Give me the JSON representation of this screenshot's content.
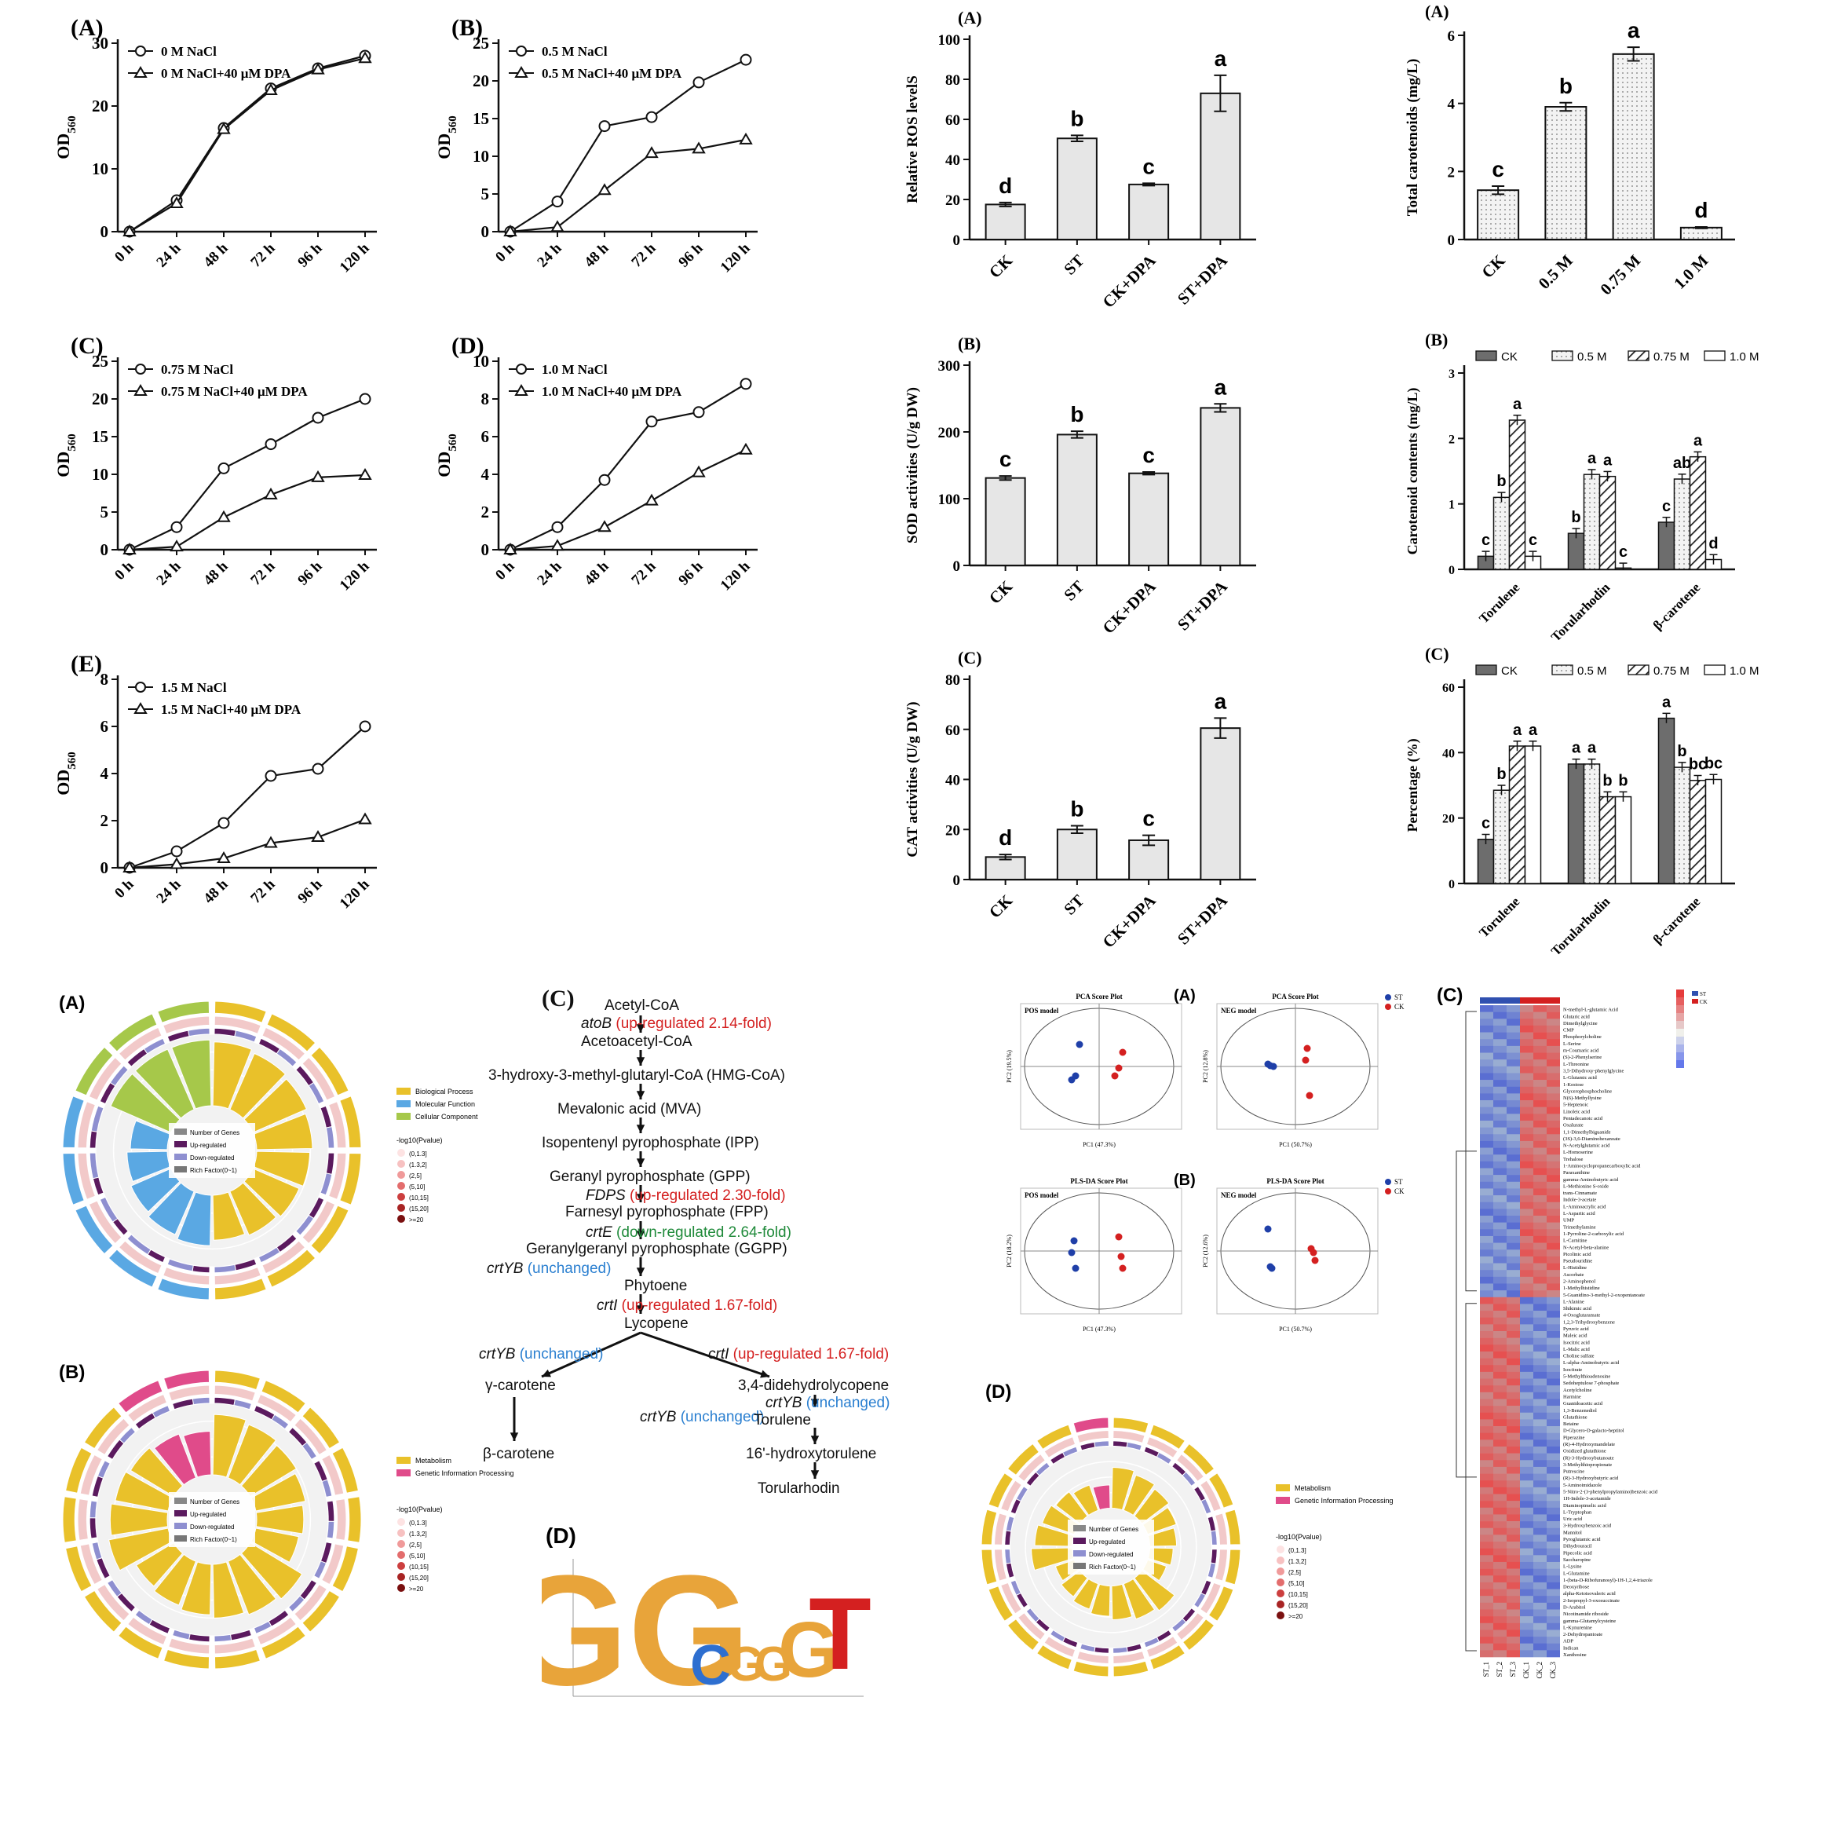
{
  "growth_panels": [
    {
      "label": "(A)",
      "series": [
        "0 M NaCl",
        "0 M NaCl+40 μM DPA"
      ]
    },
    {
      "label": "(B)",
      "series": [
        "0.5 M NaCl",
        "0.5 M NaCl+40 μM DPA"
      ]
    },
    {
      "label": "(C)",
      "series": [
        "0.75 M NaCl",
        "0.75 M NaCl+40 μM DPA"
      ]
    },
    {
      "label": "(D)",
      "series": [
        "1.0 M NaCl",
        "1.0 M NaCl+40 μM DPA"
      ]
    },
    {
      "label": "(E)",
      "series": [
        "1.5 M NaCl",
        "1.5 M NaCl+40 μM DPA"
      ]
    }
  ],
  "bar_panels": [
    {
      "label": "(A)",
      "ylabel": "Relative ROS levelS"
    },
    {
      "label": "(B)",
      "ylabel": "SOD activities (U/g DW)"
    },
    {
      "label": "(C)",
      "ylabel": "CAT activities (U/g DW)"
    }
  ],
  "carotenoid_panels": [
    {
      "label": "(A)",
      "ylabel": "Total carotenoids (mg/L)"
    },
    {
      "label": "(B)",
      "ylabel": "Carotenoid contents (mg/L)",
      "legend": [
        "CK",
        "0.5 M",
        "0.75 M",
        "1.0 M"
      ]
    },
    {
      "label": "(C)",
      "ylabel": "Percentage (%)",
      "legend": [
        "CK",
        "0.5 M",
        "0.75 M",
        "1.0 M"
      ]
    }
  ],
  "chart_data": [
    {
      "type": "line",
      "panel": "growth-A",
      "x": [
        "0 h",
        "24 h",
        "48 h",
        "72 h",
        "96 h",
        "120 h"
      ],
      "ylabel": "OD560",
      "ylim": [
        0,
        30
      ],
      "series": [
        {
          "name": "0 M NaCl",
          "values": [
            0,
            5,
            16.5,
            22.8,
            26,
            28
          ]
        },
        {
          "name": "0 M NaCl+40 μM DPA",
          "values": [
            0,
            4.5,
            16.3,
            22.5,
            25.8,
            27.6
          ]
        }
      ]
    },
    {
      "type": "line",
      "panel": "growth-B",
      "x": [
        "0 h",
        "24 h",
        "48 h",
        "72 h",
        "96 h",
        "120 h"
      ],
      "ylabel": "OD560",
      "ylim": [
        0,
        25
      ],
      "series": [
        {
          "name": "0.5 M NaCl",
          "values": [
            0,
            4,
            14,
            15.2,
            19.8,
            22.8
          ]
        },
        {
          "name": "0.5 M NaCl+40 μM DPA",
          "values": [
            0,
            0.6,
            5.5,
            10.4,
            11,
            12.2
          ]
        }
      ]
    },
    {
      "type": "line",
      "panel": "growth-C",
      "x": [
        "0 h",
        "24 h",
        "48 h",
        "72 h",
        "96 h",
        "120 h"
      ],
      "ylabel": "OD560",
      "ylim": [
        0,
        25
      ],
      "series": [
        {
          "name": "0.75 M NaCl",
          "values": [
            0,
            3,
            10.8,
            14,
            17.5,
            20
          ]
        },
        {
          "name": "0.75 M NaCl+40 μM DPA",
          "values": [
            0,
            0.4,
            4.3,
            7.3,
            9.6,
            9.9
          ]
        }
      ]
    },
    {
      "type": "line",
      "panel": "growth-D",
      "x": [
        "0 h",
        "24 h",
        "48 h",
        "72 h",
        "96 h",
        "120 h"
      ],
      "ylabel": "OD560",
      "ylim": [
        0,
        10
      ],
      "series": [
        {
          "name": "1.0 M NaCl",
          "values": [
            0,
            1.2,
            3.7,
            6.8,
            7.3,
            8.8
          ]
        },
        {
          "name": "1.0 M NaCl+40 μM DPA",
          "values": [
            0,
            0.2,
            1.2,
            2.6,
            4.1,
            5.3
          ]
        }
      ]
    },
    {
      "type": "line",
      "panel": "growth-E",
      "x": [
        "0 h",
        "24 h",
        "48 h",
        "72 h",
        "96 h",
        "120 h"
      ],
      "ylabel": "OD560",
      "ylim": [
        0,
        8
      ],
      "series": [
        {
          "name": "1.5 M NaCl",
          "values": [
            0,
            0.7,
            1.9,
            3.9,
            4.2,
            6
          ]
        },
        {
          "name": "1.5 M NaCl+40 μM DPA",
          "values": [
            0,
            0.15,
            0.4,
            1.05,
            1.3,
            2.05
          ]
        }
      ]
    },
    {
      "type": "bar",
      "panel": "ros",
      "categories": [
        "CK",
        "ST",
        "CK+DPA",
        "ST+DPA"
      ],
      "values": [
        17.5,
        50.5,
        27.5,
        73
      ],
      "errors": [
        1,
        1.5,
        0.6,
        9
      ],
      "letters": [
        "d",
        "b",
        "c",
        "a"
      ],
      "ylabel": "Relative ROS levelS",
      "ylim": [
        0,
        100
      ]
    },
    {
      "type": "bar",
      "panel": "sod",
      "categories": [
        "CK",
        "ST",
        "CK+DPA",
        "ST+DPA"
      ],
      "values": [
        131,
        196,
        138,
        236
      ],
      "errors": [
        3,
        5,
        2,
        6
      ],
      "letters": [
        "c",
        "b",
        "c",
        "a"
      ],
      "ylabel": "SOD activities (U/g DW)",
      "ylim": [
        0,
        300
      ]
    },
    {
      "type": "bar",
      "panel": "cat",
      "categories": [
        "CK",
        "ST",
        "CK+DPA",
        "ST+DPA"
      ],
      "values": [
        9,
        20,
        15.7,
        60.5
      ],
      "errors": [
        1,
        1.5,
        2,
        4
      ],
      "letters": [
        "d",
        "b",
        "c",
        "a"
      ],
      "ylabel": "CAT activities (U/g DW)",
      "ylim": [
        0,
        80
      ]
    },
    {
      "type": "bar",
      "panel": "total-carotenoids",
      "categories": [
        "CK",
        "0.5 M",
        "0.75 M",
        "1.0 M"
      ],
      "values": [
        1.45,
        3.9,
        5.45,
        0.35
      ],
      "errors": [
        0.12,
        0.12,
        0.2,
        0.02
      ],
      "letters": [
        "c",
        "b",
        "a",
        "d"
      ],
      "ylabel": "Total carotenoids (mg/L)",
      "ylim": [
        0,
        6
      ]
    },
    {
      "type": "bar",
      "panel": "carotenoid-contents",
      "categories": [
        "Torulene",
        "Torularhodin",
        "β-carotene"
      ],
      "ylabel": "Carotenoid contents (mg/L)",
      "ylim": [
        0,
        3
      ],
      "series": [
        {
          "name": "CK",
          "values": [
            0.2,
            0.55,
            0.72
          ],
          "letters": [
            "c",
            "b",
            "c"
          ]
        },
        {
          "name": "0.5 M",
          "values": [
            1.1,
            1.45,
            1.38
          ],
          "letters": [
            "b",
            "a",
            "ab"
          ]
        },
        {
          "name": "0.75 M",
          "values": [
            2.28,
            1.42,
            1.72
          ],
          "letters": [
            "a",
            "a",
            "a"
          ]
        },
        {
          "name": "1.0 M",
          "values": [
            0.2,
            0.02,
            0.15
          ],
          "letters": [
            "c",
            "c",
            "d"
          ]
        }
      ]
    },
    {
      "type": "bar",
      "panel": "percentage",
      "categories": [
        "Torulene",
        "Torularhodin",
        "β-carotene"
      ],
      "ylabel": "Percentage (%)",
      "ylim": [
        0,
        60
      ],
      "series": [
        {
          "name": "CK",
          "values": [
            13.5,
            36.5,
            50.5
          ],
          "letters": [
            "c",
            "a",
            "a"
          ]
        },
        {
          "name": "0.5 M",
          "values": [
            28.5,
            36.5,
            35.5
          ],
          "letters": [
            "b",
            "a",
            "b"
          ]
        },
        {
          "name": "0.75 M",
          "values": [
            42,
            26.5,
            31.5
          ],
          "letters": [
            "a",
            "b",
            "bc"
          ]
        },
        {
          "name": "1.0 M",
          "values": [
            42,
            26.5,
            31.8
          ],
          "letters": [
            "a",
            "b",
            "bc"
          ]
        }
      ]
    }
  ],
  "omics": {
    "go_label": "(A)",
    "kegg_label": "(B)",
    "pathway_label": "(C)",
    "motif_label": "(D)",
    "go_legend": [
      "Biological Process",
      "Molecular Function",
      "Cellular Component"
    ],
    "kegg_legend": [
      "Metabolism",
      "Genetic Information Processing"
    ],
    "inner_legend": [
      "Number of Genes",
      "Up-regulated",
      "Down-regulated",
      "Rich Factor(0~1)"
    ],
    "pvalue_title": "-log10(Pvalue)",
    "pvalue_bins": [
      "(0,1.3]",
      "(1.3,2]",
      "(2,5]",
      "(5,10]",
      "(10,15]",
      "(15,20]",
      ">=20"
    ],
    "motif_letters": [
      "GG",
      "C",
      "G",
      "G",
      "G",
      "T"
    ],
    "pathway": [
      {
        "name": "Acetyl-CoA"
      },
      {
        "gene": "atoB",
        "note": "(up-regulated  2.14-fold)",
        "kind": "up"
      },
      {
        "name": "Acetoacetyl-CoA"
      },
      {
        "name": "3-hydroxy-3-methyl-glutaryl-CoA (HMG-CoA)"
      },
      {
        "name": "Mevalonic acid (MVA)"
      },
      {
        "name": "Isopentenyl pyrophosphate (IPP)"
      },
      {
        "name": "Geranyl pyrophosphate (GPP)"
      },
      {
        "gene": "FDPS",
        "note": "(up-regulated  2.30-fold)",
        "kind": "up"
      },
      {
        "name": "Farnesyl pyrophosphate (FPP)"
      },
      {
        "gene": "crtE",
        "note": "(down-regulated  2.64-fold)",
        "kind": "down"
      },
      {
        "name": "Geranylgeranyl pyrophosphate (GGPP)"
      },
      {
        "gene": "crtYB",
        "note": "(unchanged)",
        "kind": "unch"
      },
      {
        "name": "Phytoene"
      },
      {
        "gene": "crtI",
        "note": "(up-regulated  1.67-fold)",
        "kind": "up"
      },
      {
        "name": "Lycopene"
      },
      {
        "gene": "crtYB",
        "note": "(unchanged)",
        "kind": "unch"
      },
      {
        "gene": "crtI",
        "note": "(up-regulated  1.67-fold)",
        "kind": "up"
      },
      {
        "name": "γ-carotene"
      },
      {
        "name": "3,4-didehydrolycopene"
      },
      {
        "gene": "crtYB",
        "note": "(unchanged)",
        "kind": "unch"
      },
      {
        "gene": "crtYB",
        "note": "(unchanged)",
        "kind": "unch"
      },
      {
        "name": "Torulene"
      },
      {
        "name": "β-carotene"
      },
      {
        "name": "16'-hydroxytorulene"
      },
      {
        "name": "Torularhodin"
      }
    ],
    "metab": {
      "label_a": "(A)",
      "label_b": "(B)",
      "label_c": "(C)",
      "label_d": "(D)",
      "pca_title": "PCA Score Plot",
      "plsda_title": "PLS-DA Score Plot",
      "pos": "POS model",
      "neg": "NEG model",
      "legend_st": "ST",
      "legend_ck": "CK",
      "pos_pc1": "PC1 (47.3%)",
      "neg_pc1": "PC1 (50.7%)",
      "pos_pc2": "PC2 (19.5%)",
      "neg_pc2": "PC2 (12.8%)",
      "plsda_pos_pc2": "PC2 (18.2%)",
      "plsda_neg_pc2": "PC2 (12.6%)",
      "heatmap_cols": [
        "ST_1",
        "ST_2",
        "ST_3",
        "CK_1",
        "CK_2",
        "CK_3"
      ],
      "heatmap_rows": [
        "N-methyl-L-glutamic Acid",
        "Glutaric acid",
        "Dimethylglycine",
        "CMP",
        "Phosphorylcholine",
        "L-Serine",
        "m-Coumaric acid",
        "(S)-2-Phenylserine",
        "L-Threonine",
        "3,5-Dihydroxy-phenylglycine",
        "L-Glutamic acid",
        "1-Kestose",
        "Glycerophosphocholine",
        "N(6)-Methyllysine",
        "5-Heptenoic",
        "Linoleic acid",
        "Pentadecanoic acid",
        "Oxalurate",
        "1,1-Dimethylbiguanide",
        "(3S)-3,6-Diaminohexanoate",
        "N-Acetylglutamic acid",
        "L-Homoserine",
        "Trehalose",
        "1-Aminocyclopropanecarboxylic acid",
        "Paraxanthine",
        "gamma-Aminobutyric acid",
        "L-Methionine S-oxide",
        "trans-Cinnamate",
        "Indole-3-acetate",
        "L-Aminoacrylic acid",
        "L-Aspartic acid",
        "UMP",
        "Trimethylamine",
        "1-Pyrroline-2-carboxylic acid",
        "L-Carnitine",
        "N-Acetyl-beta-alanine",
        "Picolinic acid",
        "Pseudouridine",
        "L-Histidine",
        "Ascorbate",
        "2-Aminophenol",
        "1-Methylhistidine",
        "5-Guanidino-3-methyl-2-oxopentanoate",
        "L-Alanine",
        "Shikimic acid",
        "4-Oxoglutaramate",
        "1,2,3-Trihydroxybenzene",
        "Pyruvic acid",
        "Maleic acid",
        "Isocitric acid",
        "L-Malic acid",
        "Choline sulfate",
        "L-alpha-Aminobutyric acid",
        "Isocitrate",
        "5-Methylthioadenosine",
        "Sedoheptulose 7-phosphate",
        "Acetylcholine",
        "Harmine",
        "Guanidoacetic acid",
        "1,3-Benzenediol",
        "Glutathione",
        "Betaine",
        "D-Glycero-D-galacto-heptitol",
        "Piperazine",
        "(R)-4-Hydroxymandelate",
        "Oxidized glutathione",
        "(R)-3-Hydroxybutanoate",
        "3-Methylthiopropionate",
        "Putrescine",
        "(R)-3-Hydroxybutyric acid",
        "5-Aminoimidazole",
        "5-Nitro-2-(3-phenylpropylamino)benzoic acid",
        "1H-Indole-3-acetamide",
        "Diaminopimelic acid",
        "L-Tryptophan",
        "Uric acid",
        "3-Hydroxybenzoic acid",
        "Mannitol",
        "Pyroglutamic acid",
        "Dihydrouracil",
        "Pipecolic acid",
        "Saccharopine",
        "L-Lysine",
        "L-Glutamine",
        "1-(beta-D-Ribofuranosyl)-1H-1,2,4-triazole",
        "Deoxyribose",
        "alpha-Ketoisovaleric acid",
        "2-Isopropyl-3-oxosuccinate",
        "D-Arabitol",
        "Nicotinamide riboside",
        "gamma-Glutamylcysteine",
        "L-Kynurenine",
        "2-Dehydropantoate",
        "ADP",
        "Indican",
        "Xanthosine"
      ]
    }
  }
}
